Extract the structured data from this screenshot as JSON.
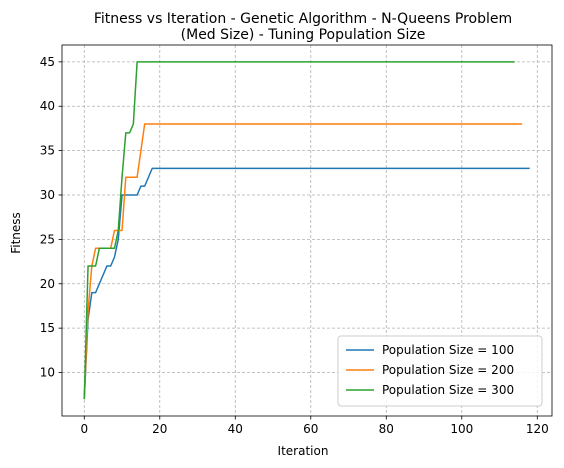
{
  "chart_data": {
    "type": "line",
    "title_line1": "Fitness vs Iteration - Genetic Algorithm - N-Queens Problem",
    "title_line2": "(Med Size) - Tuning Population Size",
    "xlabel": "Iteration",
    "ylabel": "Fitness",
    "xlim": [
      -5.9,
      123.9
    ],
    "ylim": [
      5.1,
      46.9
    ],
    "xticks": [
      0,
      20,
      40,
      60,
      80,
      100,
      120
    ],
    "yticks": [
      10,
      15,
      20,
      25,
      30,
      35,
      40,
      45
    ],
    "grid": true,
    "legend_position": "lower-right",
    "series": [
      {
        "name": "Population Size = 100",
        "color": "#1f77b4",
        "x": [
          0,
          1,
          2,
          3,
          4,
          5,
          6,
          7,
          8,
          9,
          10,
          11,
          12,
          13,
          14,
          15,
          16,
          17,
          18,
          118
        ],
        "y": [
          7,
          16,
          19,
          19,
          20,
          21,
          22,
          22,
          23,
          25,
          30,
          30,
          30,
          30,
          30,
          31,
          31,
          32,
          33,
          33
        ]
      },
      {
        "name": "Population Size = 200",
        "color": "#ff7f0e",
        "x": [
          0,
          1,
          2,
          3,
          4,
          5,
          6,
          7,
          8,
          9,
          10,
          11,
          12,
          13,
          14,
          15,
          16,
          116
        ],
        "y": [
          7,
          17,
          22,
          24,
          24,
          24,
          24,
          24,
          26,
          26,
          26,
          32,
          32,
          32,
          32,
          35,
          38,
          38
        ]
      },
      {
        "name": "Population Size = 300",
        "color": "#2ca02c",
        "x": [
          0,
          1,
          2,
          3,
          4,
          5,
          6,
          7,
          8,
          9,
          10,
          11,
          12,
          13,
          14,
          114
        ],
        "y": [
          7,
          22,
          22,
          22,
          24,
          24,
          24,
          24,
          24,
          26,
          32,
          37,
          37,
          38,
          45,
          45
        ]
      }
    ]
  }
}
